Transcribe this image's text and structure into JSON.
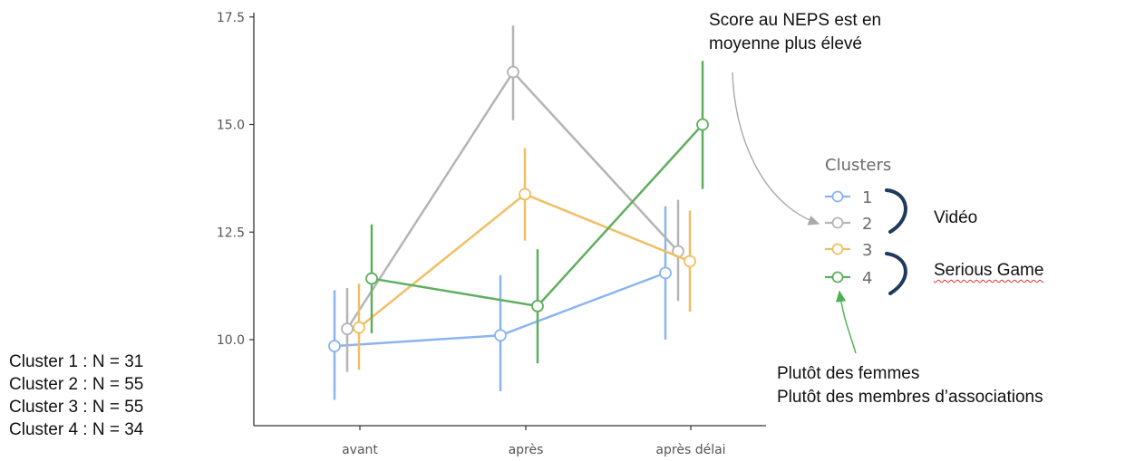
{
  "chart_data": {
    "type": "line",
    "categories": [
      "avant",
      "après",
      "après délai"
    ],
    "ylim": [
      8.0,
      17.6
    ],
    "yticks": [
      "10.0",
      "12.5",
      "15.0",
      "17.5"
    ],
    "grid": false,
    "legend": {
      "title": "Clusters",
      "placement": "right"
    },
    "series": [
      {
        "name": "1",
        "color": "#8ab4f0",
        "values": [
          9.85,
          10.1,
          11.55
        ],
        "lower": [
          8.6,
          8.8,
          10.0
        ],
        "upper": [
          11.15,
          11.5,
          13.1
        ]
      },
      {
        "name": "2",
        "color": "#b4b4b4",
        "values": [
          10.25,
          16.22,
          12.05
        ],
        "lower": [
          9.25,
          15.1,
          10.9
        ],
        "upper": [
          11.2,
          17.3,
          13.25
        ]
      },
      {
        "name": "3",
        "color": "#f0bf63",
        "values": [
          10.28,
          13.38,
          11.82
        ],
        "lower": [
          9.3,
          12.3,
          10.65
        ],
        "upper": [
          11.3,
          14.45,
          13.0
        ]
      },
      {
        "name": "4",
        "color": "#5fae5f",
        "values": [
          11.42,
          10.78,
          15.0
        ],
        "lower": [
          10.15,
          9.45,
          13.5
        ],
        "upper": [
          12.68,
          12.1,
          16.48
        ]
      }
    ]
  },
  "annotations": {
    "neps_note": [
      "Score au NEPS est en",
      "moyenne plus élevé"
    ],
    "group_video": "Vidéo",
    "group_serious_game": "Serious Game",
    "women_note": [
      "Plutôt des femmes",
      "Plutôt des membres d’associations"
    ]
  },
  "counts": [
    "Cluster 1 : N = 31",
    "Cluster 2 : N = 55",
    "Cluster 3 : N = 55",
    "Cluster 4 : N = 34"
  ],
  "colors": {
    "axis": "#333333",
    "bracket": "#1f3b5c",
    "arrow_gray": "#aaaaaa",
    "arrow_green": "#4caf50"
  }
}
